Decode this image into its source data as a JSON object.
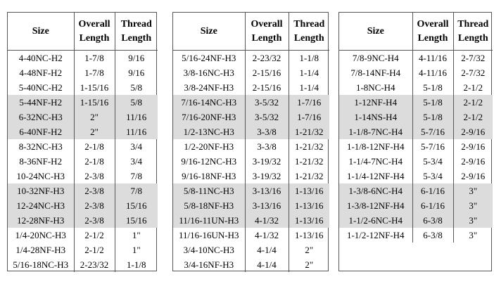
{
  "tables": [
    {
      "headers": [
        "Size",
        "Overall Length",
        "Thread Length"
      ],
      "rows": [
        [
          "4-40NC-H2",
          "1-7/8",
          "9/16"
        ],
        [
          "4-48NF-H2",
          "1-7/8",
          "9/16"
        ],
        [
          "5-40NC-H2",
          "1-15/16",
          "5/8"
        ],
        [
          "5-44NF-H2",
          "1-15/16",
          "5/8"
        ],
        [
          "6-32NC-H3",
          "2\"",
          "11/16"
        ],
        [
          "6-40NF-H2",
          "2\"",
          "11/16"
        ],
        [
          "8-32NC-H3",
          "2-1/8",
          "3/4"
        ],
        [
          "8-36NF-H2",
          "2-1/8",
          "3/4"
        ],
        [
          "10-24NC-H3",
          "2-3/8",
          "7/8"
        ],
        [
          "10-32NF-H3",
          "2-3/8",
          "7/8"
        ],
        [
          "12-24NC-H3",
          "2-3/8",
          "15/16"
        ],
        [
          "12-28NF-H3",
          "2-3/8",
          "15/16"
        ],
        [
          "1/4-20NC-H3",
          "2-1/2",
          "1\""
        ],
        [
          "1/4-28NF-H3",
          "2-1/2",
          "1\""
        ],
        [
          "5/16-18NC-H3",
          "2-23/32",
          "1-1/8"
        ]
      ]
    },
    {
      "headers": [
        "Size",
        "Overall Length",
        "Thread Length"
      ],
      "rows": [
        [
          "5/16-24NF-H3",
          "2-23/32",
          "1-1/8"
        ],
        [
          "3/8-16NC-H3",
          "2-15/16",
          "1-1/4"
        ],
        [
          "3/8-24NF-H3",
          "2-15/16",
          "1-1/4"
        ],
        [
          "7/16-14NC-H3",
          "3-5/32",
          "1-7/16"
        ],
        [
          "7/16-20NF-H3",
          "3-5/32",
          "1-7/16"
        ],
        [
          "1/2-13NC-H3",
          "3-3/8",
          "1-21/32"
        ],
        [
          "1/2-20NF-H3",
          "3-3/8",
          "1-21/32"
        ],
        [
          "9/16-12NC-H3",
          "3-19/32",
          "1-21/32"
        ],
        [
          "9/16-18NF-H3",
          "3-19/32",
          "1-21/32"
        ],
        [
          "5/8-11NC-H3",
          "3-13/16",
          "1-13/16"
        ],
        [
          "5/8-18NF-H3",
          "3-13/16",
          "1-13/16"
        ],
        [
          "11/16-11UN-H3",
          "4-1/32",
          "1-13/16"
        ],
        [
          "11/16-16UN-H3",
          "4-1/32",
          "1-13/16"
        ],
        [
          "3/4-10NC-H3",
          "4-1/4",
          "2\""
        ],
        [
          "3/4-16NF-H3",
          "4-1/4",
          "2\""
        ]
      ]
    },
    {
      "headers": [
        "Size",
        "Overall Length",
        "Thread Length"
      ],
      "rows": [
        [
          "7/8-9NC-H4",
          "4-11/16",
          "2-7/32"
        ],
        [
          "7/8-14NF-H4",
          "4-11/16",
          "2-7/32"
        ],
        [
          "1-8NC-H4",
          "5-1/8",
          "2-1/2"
        ],
        [
          "1-12NF-H4",
          "5-1/8",
          "2-1/2"
        ],
        [
          "1-14NS-H4",
          "5-1/8",
          "2-1/2"
        ],
        [
          "1-1/8-7NC-H4",
          "5-7/16",
          "2-9/16"
        ],
        [
          "1-1/8-12NF-H4",
          "5-7/16",
          "2-9/16"
        ],
        [
          "1-1/4-7NC-H4",
          "5-3/4",
          "2-9/16"
        ],
        [
          "1-1/4-12NF-H4",
          "5-3/4",
          "2-9/16"
        ],
        [
          "1-3/8-6NC-H4",
          "6-1/16",
          "3\""
        ],
        [
          "1-3/8-12NF-H4",
          "6-1/16",
          "3\""
        ],
        [
          "1-1/2-6NC-H4",
          "6-3/8",
          "3\""
        ],
        [
          "1-1/2-12NF-H4",
          "6-3/8",
          "3\""
        ]
      ]
    }
  ]
}
